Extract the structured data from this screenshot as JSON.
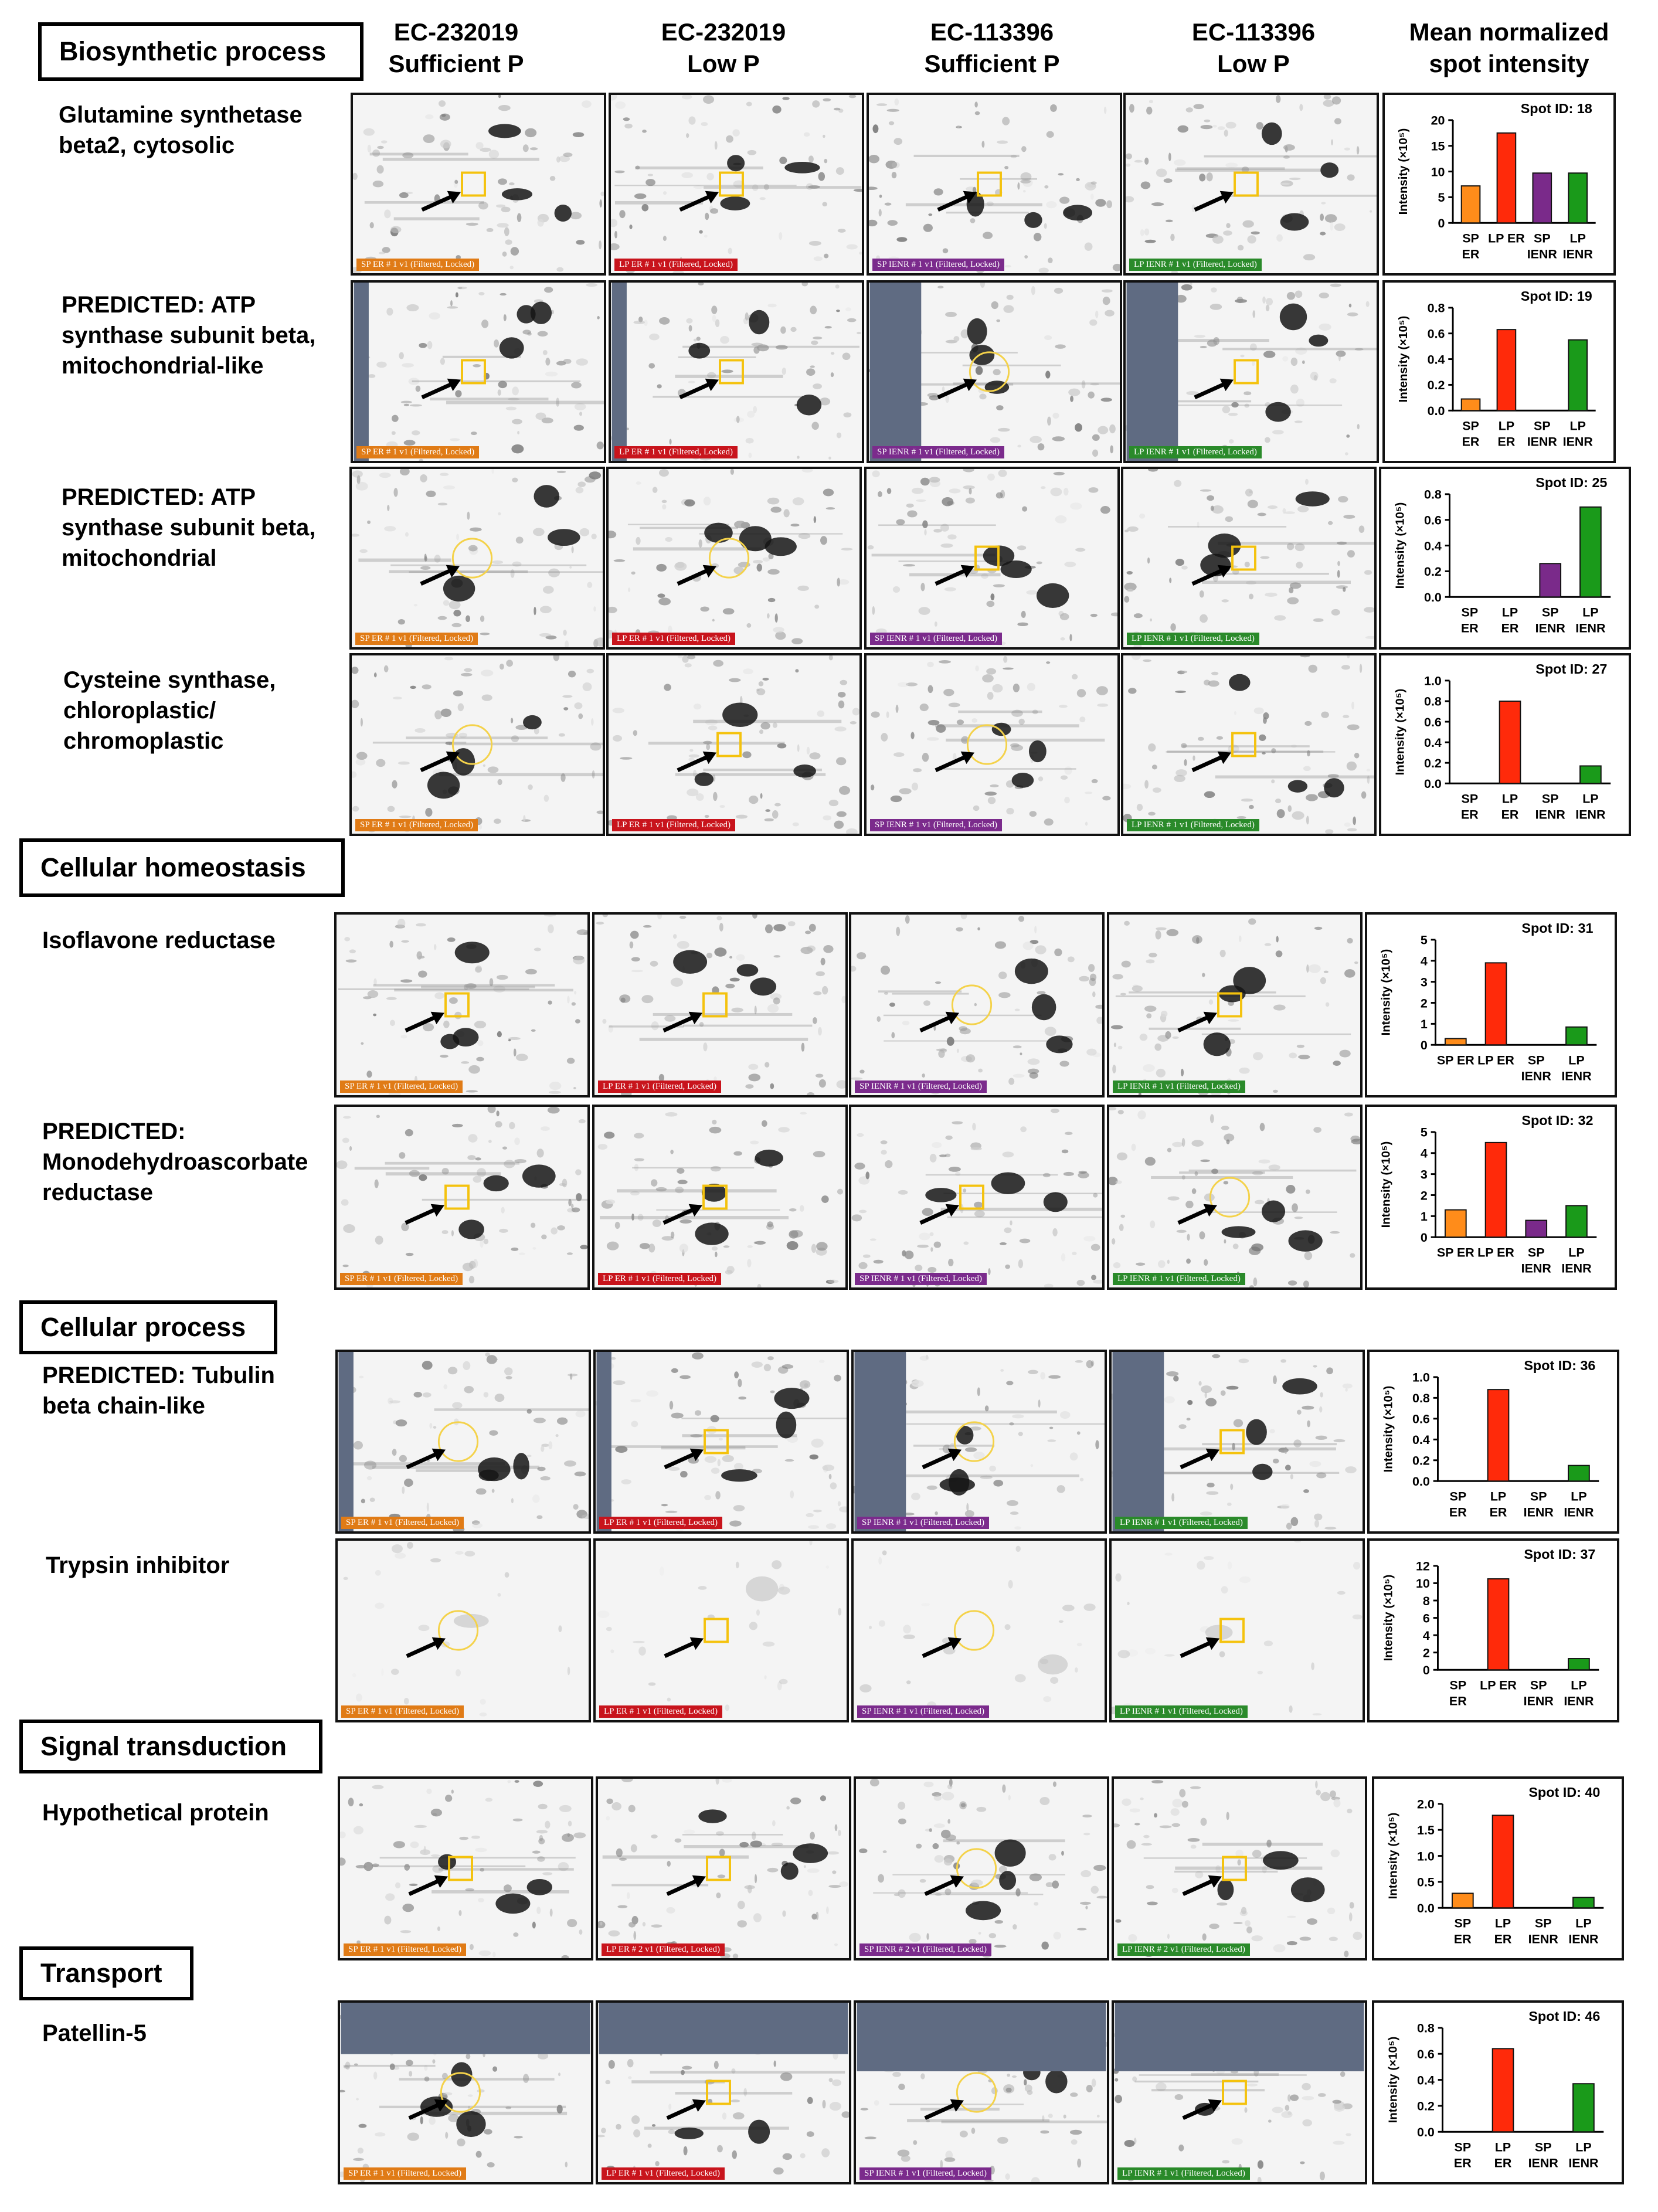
{
  "column_headers": [
    {
      "line1": "EC-232019",
      "line2": "Sufficient P"
    },
    {
      "line1": "EC-232019",
      "line2": "Low P"
    },
    {
      "line1": "EC-113396",
      "line2": "Sufficient P"
    },
    {
      "line1": "EC-113396",
      "line2": "Low P"
    },
    {
      "line1": "Mean normalized",
      "line2": "spot intensity"
    }
  ],
  "gel_tags": [
    "SP ER # 1 v1 (Filtered, Locked)",
    "LP ER # 1 v1 (Filtered, Locked)",
    "SP IENR # 1 v1 (Filtered, Locked)",
    "LP IENR # 1 v1 (Filtered, Locked)"
  ],
  "gel_tags_alt": [
    "SP ER # 1 v1 (Filtered, Locked)",
    "LP ER # 2 v1 (Filtered, Locked)",
    "SP IENR # 2 v1 (Filtered, Locked)",
    "LP IENR # 2 v1 (Filtered, Locked)"
  ],
  "tag_colors": [
    "#e07b16",
    "#c8141c",
    "#7b2b8c",
    "#2a8a2a"
  ],
  "bar_colors": [
    "#ff8c1a",
    "#ff2a0a",
    "#7a2a8a",
    "#1a9a1a"
  ],
  "axis_label": "Intensity (×10⁵)",
  "spot_prefix": "Spot ID: ",
  "sections": [
    {
      "title": "Biosynthetic process"
    },
    {
      "title": "Cellular homeostasis"
    },
    {
      "title": "Cellular process"
    },
    {
      "title": "Signal transduction"
    },
    {
      "title": "Transport"
    }
  ],
  "proteins": [
    {
      "name_lines": [
        "Glutamine synthetase",
        "beta2, cytosolic"
      ]
    },
    {
      "name_lines": [
        "PREDICTED: ATP",
        "synthase subunit beta,",
        "mitochondrial-like"
      ]
    },
    {
      "name_lines": [
        "PREDICTED: ATP",
        "synthase subunit beta,",
        "mitochondrial"
      ]
    },
    {
      "name_lines": [
        "Cysteine synthase,",
        "chloroplastic/",
        "chromoplastic"
      ]
    },
    {
      "name_lines": [
        "Isoflavone reductase"
      ]
    },
    {
      "name_lines": [
        "PREDICTED:",
        "Monodehydroascorbate",
        "reductase"
      ]
    },
    {
      "name_lines": [
        "PREDICTED: Tubulin",
        "beta chain-like"
      ]
    },
    {
      "name_lines": [
        "Trypsin inhibitor"
      ]
    },
    {
      "name_lines": [
        "Hypothetical protein"
      ]
    },
    {
      "name_lines": [
        "Patellin-5"
      ]
    }
  ],
  "chart_data": [
    {
      "type": "bar",
      "spot_id": "18",
      "categories": [
        [
          "SP",
          "ER"
        ],
        [
          "LP ER"
        ],
        [
          "SP",
          "IENR"
        ],
        [
          "LP",
          "IENR"
        ]
      ],
      "values": [
        7.2,
        17.5,
        9.7,
        9.7
      ],
      "ylim": [
        0,
        20
      ],
      "yticks": [
        "0",
        "5",
        "10",
        "15",
        "20"
      ],
      "ylabel": "Intensity (×10⁵)"
    },
    {
      "type": "bar",
      "spot_id": "19",
      "categories": [
        [
          "SP",
          "ER"
        ],
        [
          "LP",
          "ER"
        ],
        [
          "SP",
          "IENR"
        ],
        [
          "LP",
          "IENR"
        ]
      ],
      "values": [
        0.09,
        0.63,
        0,
        0.55
      ],
      "ylim": [
        0,
        0.8
      ],
      "yticks": [
        "0.0",
        "0.2",
        "0.4",
        "0.6",
        "0.8"
      ],
      "ylabel": "Intensity (×10⁵)"
    },
    {
      "type": "bar",
      "spot_id": "25",
      "categories": [
        [
          "SP",
          "ER"
        ],
        [
          "LP",
          "ER"
        ],
        [
          "SP",
          "IENR"
        ],
        [
          "LP",
          "IENR"
        ]
      ],
      "values": [
        0,
        0,
        0.26,
        0.7
      ],
      "ylim": [
        0,
        0.8
      ],
      "yticks": [
        "0.0",
        "0.2",
        "0.4",
        "0.6",
        "0.8"
      ],
      "ylabel": "Intensity (×10⁵)"
    },
    {
      "type": "bar",
      "spot_id": "27",
      "categories": [
        [
          "SP",
          "ER"
        ],
        [
          "LP",
          "ER"
        ],
        [
          "SP",
          "IENR"
        ],
        [
          "LP",
          "IENR"
        ]
      ],
      "values": [
        0,
        0.8,
        0,
        0.17
      ],
      "ylim": [
        0,
        1.0
      ],
      "yticks": [
        "0.0",
        "0.2",
        "0.4",
        "0.6",
        "0.8",
        "1.0"
      ],
      "ylabel": "Intensity (×10⁵)"
    },
    {
      "type": "bar",
      "spot_id": "31",
      "categories": [
        [
          "SP ER"
        ],
        [
          "LP ER"
        ],
        [
          "SP",
          "IENR"
        ],
        [
          "LP",
          "IENR"
        ]
      ],
      "values": [
        0.3,
        3.9,
        0,
        0.85
      ],
      "ylim": [
        0,
        5
      ],
      "yticks": [
        "0",
        "1",
        "2",
        "3",
        "4",
        "5"
      ],
      "ylabel": "Intensity (×10⁵)"
    },
    {
      "type": "bar",
      "spot_id": "32",
      "categories": [
        [
          "SP ER"
        ],
        [
          "LP ER"
        ],
        [
          "SP",
          "IENR"
        ],
        [
          "LP",
          "IENR"
        ]
      ],
      "values": [
        1.3,
        4.5,
        0.8,
        1.5
      ],
      "ylim": [
        0,
        5
      ],
      "yticks": [
        "0",
        "1",
        "2",
        "3",
        "4",
        "5"
      ],
      "ylabel": "Intensity (×10⁵)"
    },
    {
      "type": "bar",
      "spot_id": "36",
      "categories": [
        [
          "SP",
          "ER"
        ],
        [
          "LP",
          "ER"
        ],
        [
          "SP",
          "IENR"
        ],
        [
          "LP",
          "IENR"
        ]
      ],
      "values": [
        0,
        0.88,
        0,
        0.15
      ],
      "ylim": [
        0,
        1.0
      ],
      "yticks": [
        "0.0",
        "0.2",
        "0.4",
        "0.6",
        "0.8",
        "1.0"
      ],
      "ylabel": "Intensity (×10⁵)"
    },
    {
      "type": "bar",
      "spot_id": "37",
      "categories": [
        [
          "SP",
          "ER"
        ],
        [
          "LP ER"
        ],
        [
          "SP",
          "IENR"
        ],
        [
          "LP",
          "IENR"
        ]
      ],
      "values": [
        0,
        10.5,
        0,
        1.3
      ],
      "ylim": [
        0,
        12
      ],
      "yticks": [
        "0",
        "2",
        "4",
        "6",
        "8",
        "10",
        "12"
      ],
      "ylabel": "Intensity (×10⁵)"
    },
    {
      "type": "bar",
      "spot_id": "40",
      "categories": [
        [
          "SP",
          "ER"
        ],
        [
          "LP",
          "ER"
        ],
        [
          "SP",
          "IENR"
        ],
        [
          "LP",
          "IENR"
        ]
      ],
      "values": [
        0.28,
        1.78,
        0,
        0.2
      ],
      "ylim": [
        0,
        2.0
      ],
      "yticks": [
        "0.0",
        "0.5",
        "1.0",
        "1.5",
        "2.0"
      ],
      "ylabel": "Intensity (×10⁵)"
    },
    {
      "type": "bar",
      "spot_id": "46",
      "categories": [
        [
          "SP",
          "ER"
        ],
        [
          "LP",
          "ER"
        ],
        [
          "SP",
          "IENR"
        ],
        [
          "LP",
          "IENR"
        ]
      ],
      "values": [
        0,
        0.64,
        0,
        0.37
      ],
      "ylim": [
        0,
        0.8
      ],
      "yticks": [
        "0.0",
        "0.2",
        "0.4",
        "0.6",
        "0.8"
      ],
      "ylabel": "Intensity (×10⁵)"
    }
  ]
}
